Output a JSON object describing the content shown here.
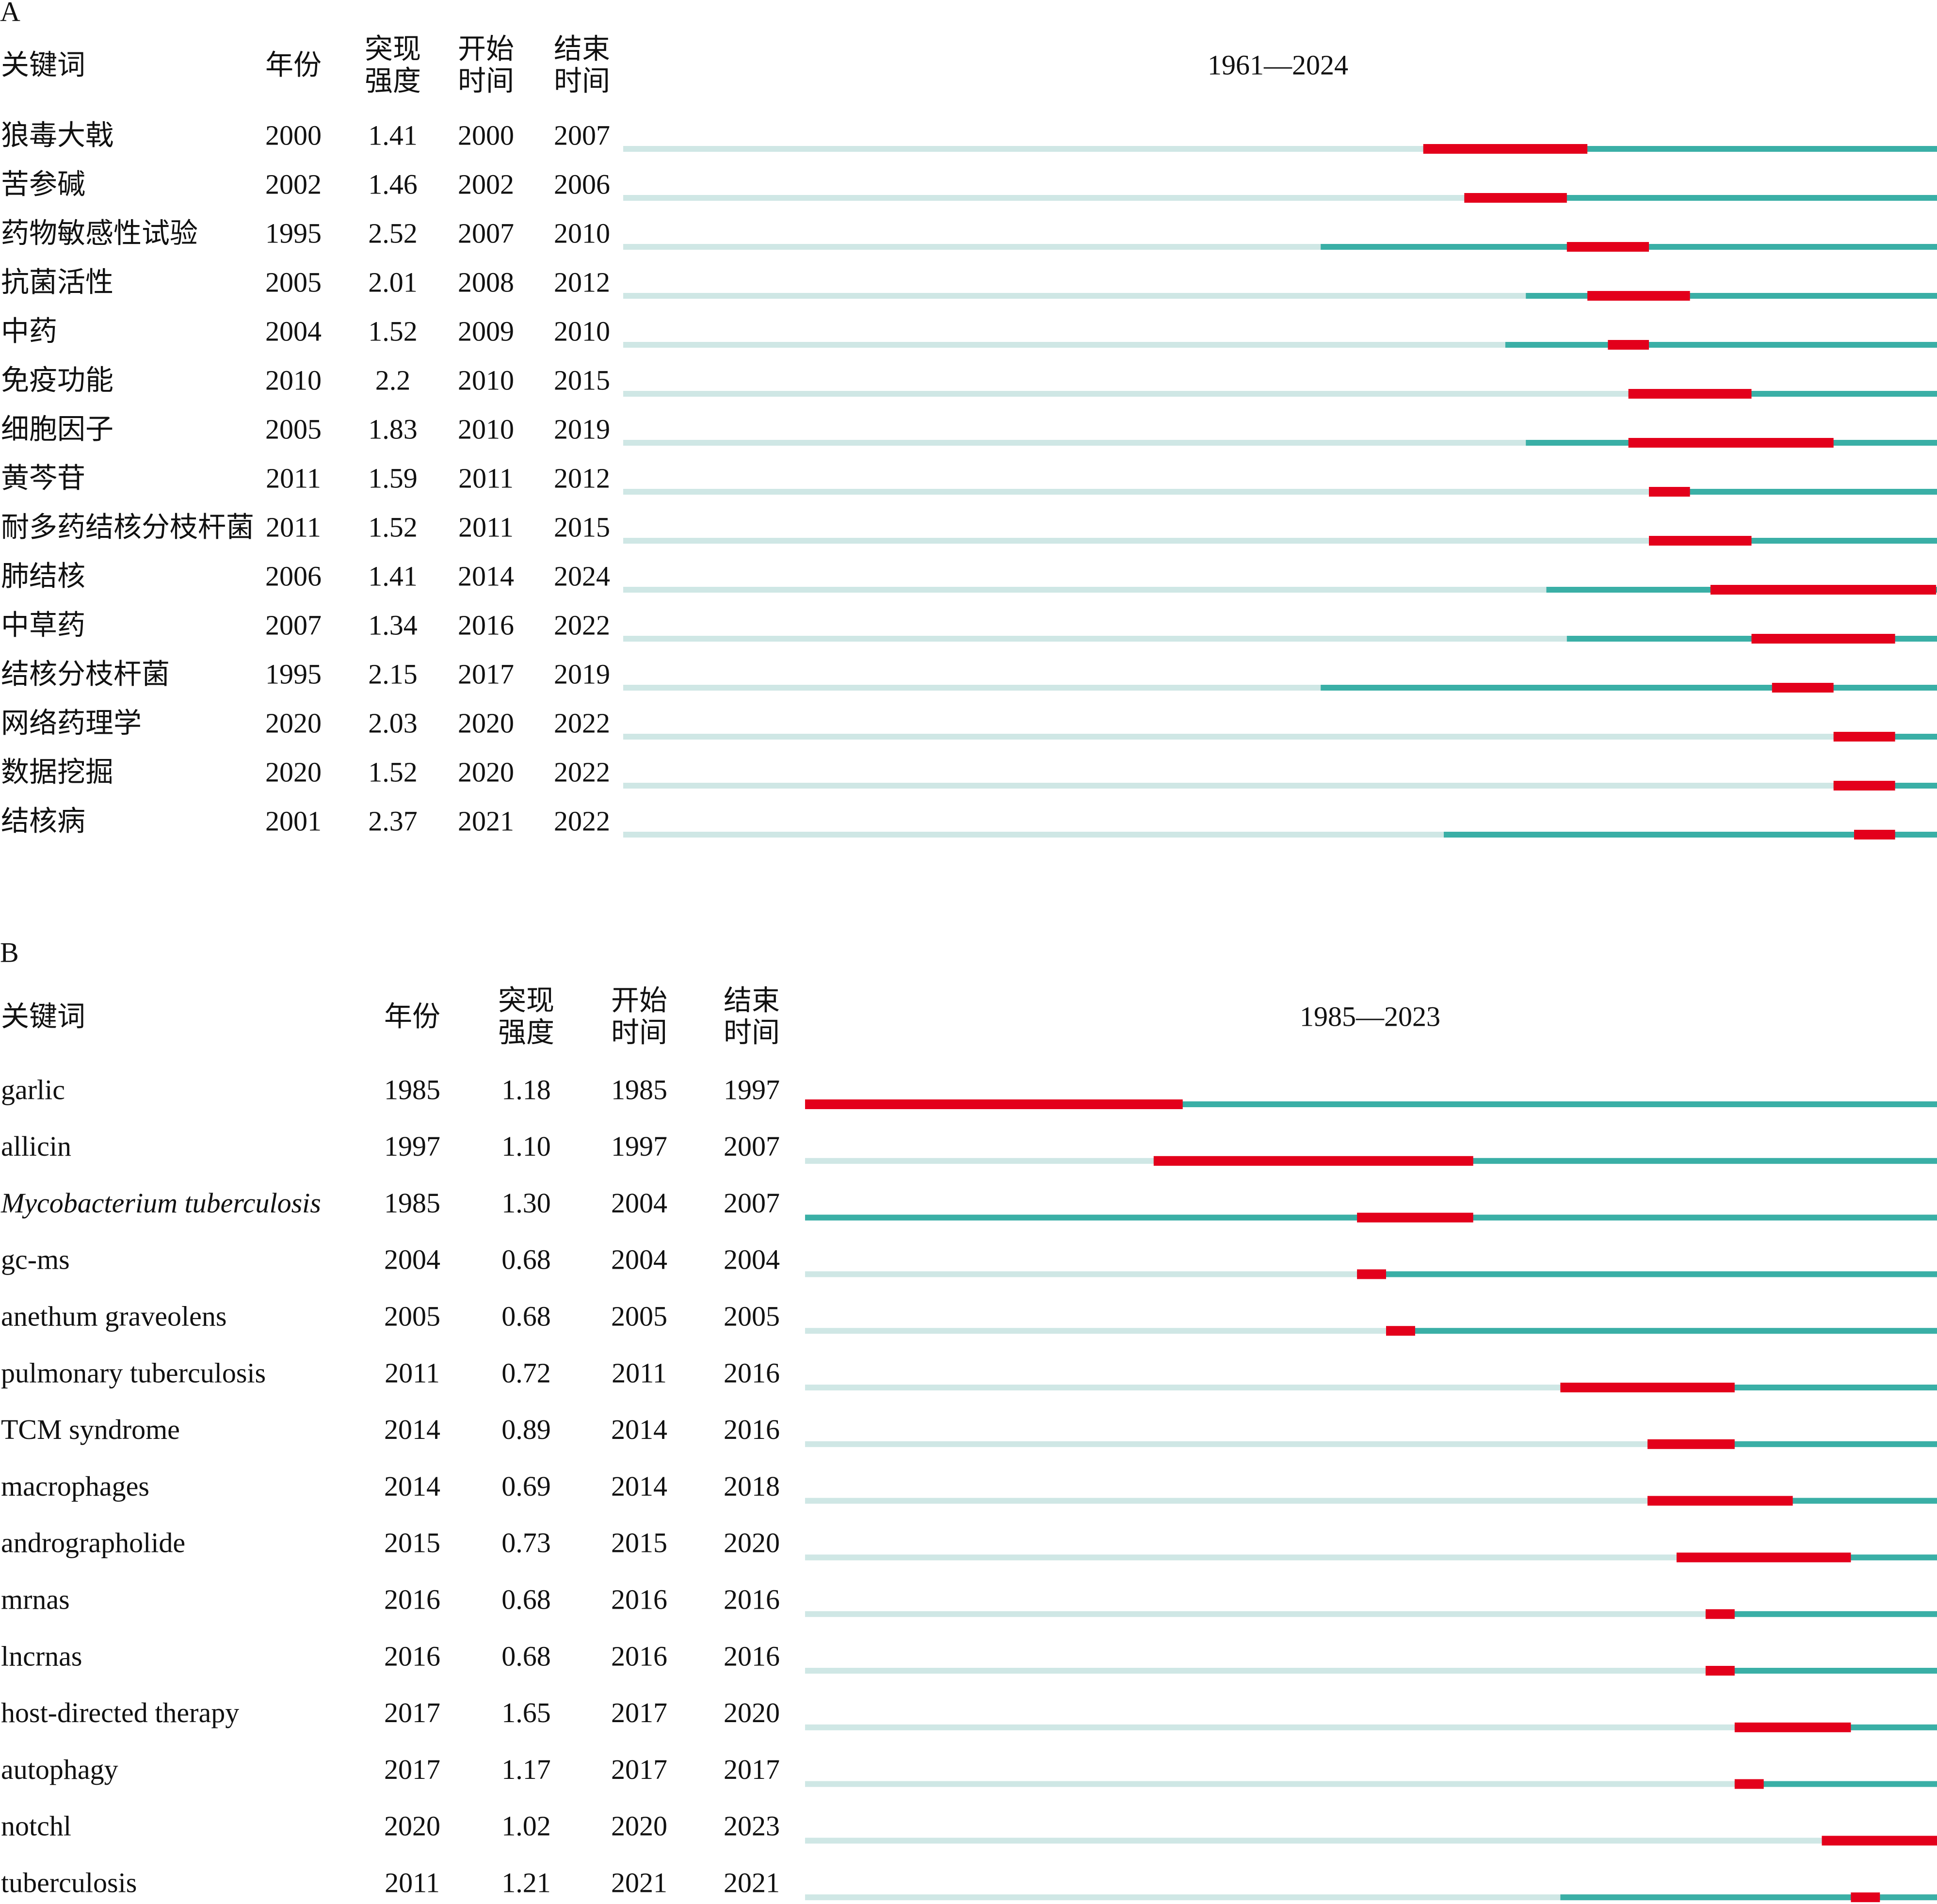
{
  "colors": {
    "before": "#cfe7e5",
    "active": "#3aafa6",
    "burst": "#e3001b",
    "text": "#111111"
  },
  "panels": [
    {
      "label": "A",
      "headers": {
        "keyword": "关键词",
        "year": "年份",
        "strength": [
          "突现",
          "强度"
        ],
        "begin": [
          "开始",
          "时间"
        ],
        "end": [
          "结束",
          "时间"
        ]
      },
      "range_label": "1961—2024",
      "range": [
        1961,
        2024
      ],
      "italic_keywords": [],
      "rows": [
        {
          "keyword": "狼毒大戟",
          "year": "2000",
          "strength": "1.41",
          "begin": "2000",
          "end": "2007"
        },
        {
          "keyword": "苦参碱",
          "year": "2002",
          "strength": "1.46",
          "begin": "2002",
          "end": "2006"
        },
        {
          "keyword": "药物敏感性试验",
          "year": "1995",
          "strength": "2.52",
          "begin": "2007",
          "end": "2010"
        },
        {
          "keyword": "抗菌活性",
          "year": "2005",
          "strength": "2.01",
          "begin": "2008",
          "end": "2012"
        },
        {
          "keyword": "中药",
          "year": "2004",
          "strength": "1.52",
          "begin": "2009",
          "end": "2010"
        },
        {
          "keyword": "免疫功能",
          "year": "2010",
          "strength": "2.2",
          "begin": "2010",
          "end": "2015"
        },
        {
          "keyword": "细胞因子",
          "year": "2005",
          "strength": "1.83",
          "begin": "2010",
          "end": "2019"
        },
        {
          "keyword": "黄芩苷",
          "year": "2011",
          "strength": "1.59",
          "begin": "2011",
          "end": "2012"
        },
        {
          "keyword": "耐多药结核分枝杆菌",
          "year": "2011",
          "strength": "1.52",
          "begin": "2011",
          "end": "2015"
        },
        {
          "keyword": "肺结核",
          "year": "2006",
          "strength": "1.41",
          "begin": "2014",
          "end": "2024"
        },
        {
          "keyword": "中草药",
          "year": "2007",
          "strength": "1.34",
          "begin": "2016",
          "end": "2022"
        },
        {
          "keyword": "结核分枝杆菌",
          "year": "1995",
          "strength": "2.15",
          "begin": "2017",
          "end": "2019"
        },
        {
          "keyword": "网络药理学",
          "year": "2020",
          "strength": "2.03",
          "begin": "2020",
          "end": "2022"
        },
        {
          "keyword": "数据挖掘",
          "year": "2020",
          "strength": "1.52",
          "begin": "2020",
          "end": "2022"
        },
        {
          "keyword": "结核病",
          "year": "2001",
          "strength": "2.37",
          "begin": "2021",
          "end": "2022"
        }
      ]
    },
    {
      "label": "B",
      "headers": {
        "keyword": "关键词",
        "year": "年份",
        "strength": [
          "突现",
          "强度"
        ],
        "begin": [
          "开始",
          "时间"
        ],
        "end": [
          "结束",
          "时间"
        ]
      },
      "range_label": "1985—2023",
      "range": [
        1985,
        2023
      ],
      "italic_keywords": [
        "Mycobacterium tuberculosis"
      ],
      "rows": [
        {
          "keyword": "garlic",
          "year": "1985",
          "strength": "1.18",
          "begin": "1985",
          "end": "1997"
        },
        {
          "keyword": "allicin",
          "year": "1997",
          "strength": "1.10",
          "begin": "1997",
          "end": "2007"
        },
        {
          "keyword": "Mycobacterium tuberculosis",
          "year": "1985",
          "strength": "1.30",
          "begin": "2004",
          "end": "2007"
        },
        {
          "keyword": "gc-ms",
          "year": "2004",
          "strength": "0.68",
          "begin": "2004",
          "end": "2004"
        },
        {
          "keyword": "anethum graveolens",
          "year": "2005",
          "strength": "0.68",
          "begin": "2005",
          "end": "2005"
        },
        {
          "keyword": "pulmonary tuberculosis",
          "year": "2011",
          "strength": "0.72",
          "begin": "2011",
          "end": "2016"
        },
        {
          "keyword": "TCM syndrome",
          "year": "2014",
          "strength": "0.89",
          "begin": "2014",
          "end": "2016"
        },
        {
          "keyword": "macrophages",
          "year": "2014",
          "strength": "0.69",
          "begin": "2014",
          "end": "2018"
        },
        {
          "keyword": "andrographolide",
          "year": "2015",
          "strength": "0.73",
          "begin": "2015",
          "end": "2020"
        },
        {
          "keyword": "mrnas",
          "year": "2016",
          "strength": "0.68",
          "begin": "2016",
          "end": "2016"
        },
        {
          "keyword": "lncrnas",
          "year": "2016",
          "strength": "0.68",
          "begin": "2016",
          "end": "2016"
        },
        {
          "keyword": "host-directed therapy",
          "year": "2017",
          "strength": "1.65",
          "begin": "2017",
          "end": "2020"
        },
        {
          "keyword": "autophagy",
          "year": "2017",
          "strength": "1.17",
          "begin": "2017",
          "end": "2017"
        },
        {
          "keyword": "notchl",
          "year": "2020",
          "strength": "1.02",
          "begin": "2020",
          "end": "2023"
        },
        {
          "keyword": "tuberculosis",
          "year": "2011",
          "strength": "1.21",
          "begin": "2021",
          "end": "2021"
        }
      ]
    }
  ],
  "chart_data": [
    {
      "type": "table",
      "title": "1961—2024",
      "columns": [
        "关键词",
        "年份",
        "突现强度",
        "开始时间",
        "结束时间"
      ],
      "x_range": [
        1961,
        2024
      ],
      "series": [
        {
          "keyword": "狼毒大戟",
          "year": 2000,
          "strength": 1.41,
          "begin": 2000,
          "end": 2007
        },
        {
          "keyword": "苦参碱",
          "year": 2002,
          "strength": 1.46,
          "begin": 2002,
          "end": 2006
        },
        {
          "keyword": "药物敏感性试验",
          "year": 1995,
          "strength": 2.52,
          "begin": 2007,
          "end": 2010
        },
        {
          "keyword": "抗菌活性",
          "year": 2005,
          "strength": 2.01,
          "begin": 2008,
          "end": 2012
        },
        {
          "keyword": "中药",
          "year": 2004,
          "strength": 1.52,
          "begin": 2009,
          "end": 2010
        },
        {
          "keyword": "免疫功能",
          "year": 2010,
          "strength": 2.2,
          "begin": 2010,
          "end": 2015
        },
        {
          "keyword": "细胞因子",
          "year": 2005,
          "strength": 1.83,
          "begin": 2010,
          "end": 2019
        },
        {
          "keyword": "黄芩苷",
          "year": 2011,
          "strength": 1.59,
          "begin": 2011,
          "end": 2012
        },
        {
          "keyword": "耐多药结核分枝杆菌",
          "year": 2011,
          "strength": 1.52,
          "begin": 2011,
          "end": 2015
        },
        {
          "keyword": "肺结核",
          "year": 2006,
          "strength": 1.41,
          "begin": 2014,
          "end": 2024
        },
        {
          "keyword": "中草药",
          "year": 2007,
          "strength": 1.34,
          "begin": 2016,
          "end": 2022
        },
        {
          "keyword": "结核分枝杆菌",
          "year": 1995,
          "strength": 2.15,
          "begin": 2017,
          "end": 2019
        },
        {
          "keyword": "网络药理学",
          "year": 2020,
          "strength": 2.03,
          "begin": 2020,
          "end": 2022
        },
        {
          "keyword": "数据挖掘",
          "year": 2020,
          "strength": 1.52,
          "begin": 2020,
          "end": 2022
        },
        {
          "keyword": "结核病",
          "year": 2001,
          "strength": 2.37,
          "begin": 2021,
          "end": 2022
        }
      ]
    },
    {
      "type": "table",
      "title": "1985—2023",
      "columns": [
        "关键词",
        "年份",
        "突现强度",
        "开始时间",
        "结束时间"
      ],
      "x_range": [
        1985,
        2023
      ],
      "series": [
        {
          "keyword": "garlic",
          "year": 1985,
          "strength": 1.18,
          "begin": 1985,
          "end": 1997
        },
        {
          "keyword": "allicin",
          "year": 1997,
          "strength": 1.1,
          "begin": 1997,
          "end": 2007
        },
        {
          "keyword": "Mycobacterium tuberculosis",
          "year": 1985,
          "strength": 1.3,
          "begin": 2004,
          "end": 2007
        },
        {
          "keyword": "gc-ms",
          "year": 2004,
          "strength": 0.68,
          "begin": 2004,
          "end": 2004
        },
        {
          "keyword": "anethum graveolens",
          "year": 2005,
          "strength": 0.68,
          "begin": 2005,
          "end": 2005
        },
        {
          "keyword": "pulmonary tuberculosis",
          "year": 2011,
          "strength": 0.72,
          "begin": 2011,
          "end": 2016
        },
        {
          "keyword": "TCM syndrome",
          "year": 2014,
          "strength": 0.89,
          "begin": 2014,
          "end": 2016
        },
        {
          "keyword": "macrophages",
          "year": 2014,
          "strength": 0.69,
          "begin": 2014,
          "end": 2018
        },
        {
          "keyword": "andrographolide",
          "year": 2015,
          "strength": 0.73,
          "begin": 2015,
          "end": 2020
        },
        {
          "keyword": "mrnas",
          "year": 2016,
          "strength": 0.68,
          "begin": 2016,
          "end": 2016
        },
        {
          "keyword": "lncrnas",
          "year": 2016,
          "strength": 0.68,
          "begin": 2016,
          "end": 2016
        },
        {
          "keyword": "host-directed therapy",
          "year": 2017,
          "strength": 1.65,
          "begin": 2017,
          "end": 2020
        },
        {
          "keyword": "autophagy",
          "year": 2017,
          "strength": 1.17,
          "begin": 2017,
          "end": 2017
        },
        {
          "keyword": "notchl",
          "year": 2020,
          "strength": 1.02,
          "begin": 2020,
          "end": 2023
        },
        {
          "keyword": "tuberculosis",
          "year": 2011,
          "strength": 1.21,
          "begin": 2021,
          "end": 2021
        }
      ]
    }
  ]
}
